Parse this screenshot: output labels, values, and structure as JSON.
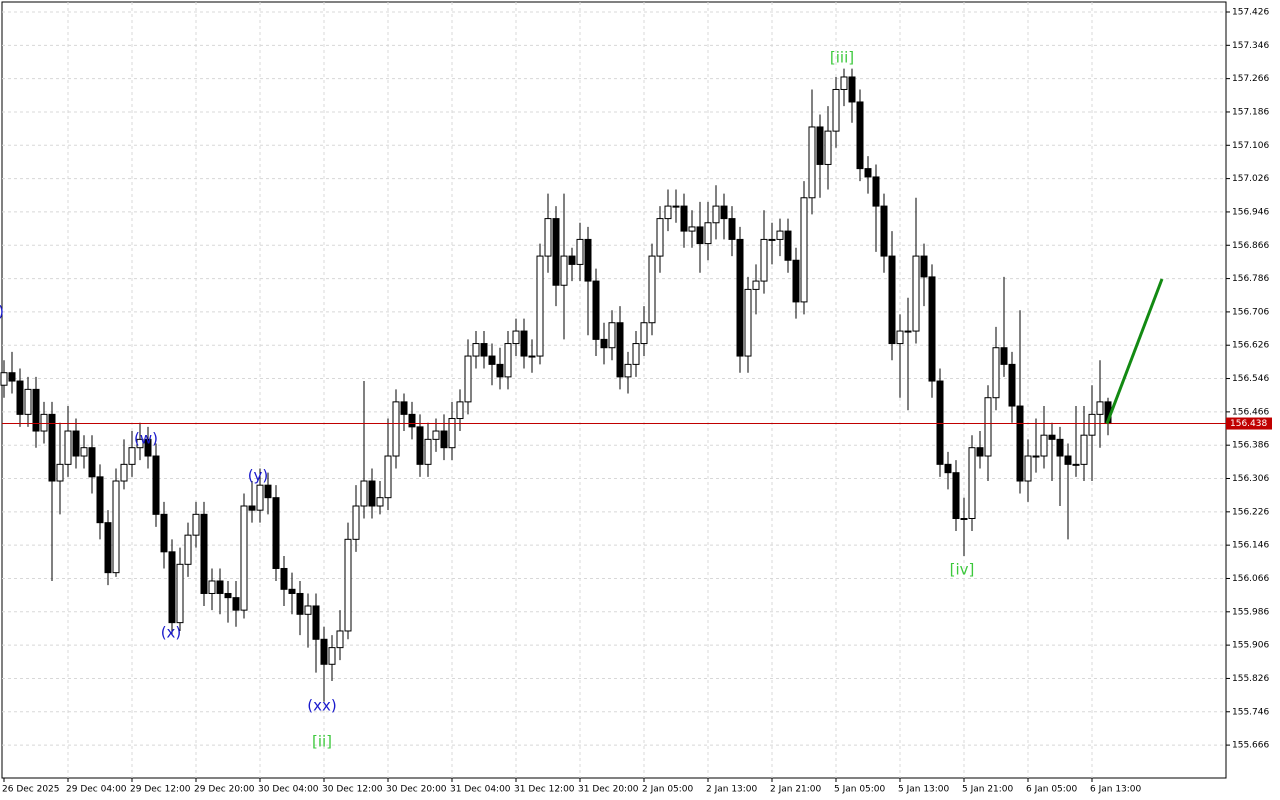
{
  "chart_data": {
    "type": "candlestick",
    "categories": [
      "26 Dec 2025",
      null,
      null,
      null,
      null,
      null,
      null,
      null,
      "29 Dec 04:00",
      null,
      null,
      null,
      null,
      null,
      null,
      null,
      "29 Dec 12:00",
      null,
      null,
      null,
      null,
      null,
      null,
      null,
      "29 Dec 20:00",
      null,
      null,
      null,
      null,
      null,
      null,
      null,
      "30 Dec 04:00",
      null,
      null,
      null,
      null,
      null,
      null,
      null,
      "30 Dec 12:00",
      null,
      null,
      null,
      null,
      null,
      null,
      null,
      "30 Dec 20:00",
      null,
      null,
      null,
      null,
      null,
      null,
      null,
      "31 Dec 04:00",
      null,
      null,
      null,
      null,
      null,
      null,
      null,
      "31 Dec 12:00",
      null,
      null,
      null,
      null,
      null,
      null,
      null,
      "31 Dec 20:00",
      null,
      null,
      null,
      null,
      null,
      null,
      null,
      "2 Jan 05:00",
      null,
      null,
      null,
      null,
      null,
      null,
      null,
      "2 Jan 13:00",
      null,
      null,
      null,
      null,
      null,
      null,
      null,
      "2 Jan 21:00",
      null,
      null,
      null,
      null,
      null,
      null,
      null,
      "5 Jan 05:00",
      null,
      null,
      null,
      null,
      null,
      null,
      null,
      "5 Jan 13:00",
      null,
      null,
      null,
      null,
      null,
      null,
      null,
      "5 Jan 21:00",
      null,
      null,
      null,
      null,
      null,
      null,
      null,
      "6 Jan 05:00",
      null,
      null,
      null,
      null,
      null,
      null,
      null,
      "6 Jan 13:00",
      null,
      null
    ],
    "open": [
      156.53,
      156.56,
      156.54,
      156.46,
      156.52,
      156.42,
      156.46,
      156.3,
      156.34,
      156.42,
      156.36,
      156.38,
      156.31,
      156.2,
      156.08,
      156.3,
      156.34,
      156.38,
      156.4,
      156.36,
      156.22,
      156.13,
      155.96,
      156.1,
      156.17,
      156.22,
      156.03,
      156.06,
      156.03,
      156.02,
      155.99,
      156.24,
      156.23,
      156.29,
      156.26,
      156.09,
      156.04,
      156.03,
      155.98,
      156.0,
      155.92,
      155.86,
      155.9,
      155.94,
      156.16,
      156.24,
      156.3,
      156.24,
      156.26,
      156.36,
      156.49,
      156.46,
      156.43,
      156.34,
      156.4,
      156.42,
      156.38,
      156.45,
      156.49,
      156.6,
      156.63,
      156.6,
      156.58,
      156.55,
      156.63,
      156.66,
      156.6,
      156.6,
      156.84,
      156.93,
      156.77,
      156.84,
      156.82,
      156.88,
      156.78,
      156.64,
      156.62,
      156.68,
      156.55,
      156.58,
      156.63,
      156.68,
      156.84,
      156.93,
      156.96,
      156.96,
      156.9,
      156.91,
      156.87,
      156.92,
      156.96,
      156.93,
      156.88,
      156.6,
      156.76,
      156.78,
      156.88,
      156.88,
      156.9,
      156.83,
      156.73,
      156.98,
      157.15,
      157.06,
      157.14,
      157.24,
      157.27,
      157.21,
      157.05,
      157.03,
      156.96,
      156.84,
      156.63,
      156.66,
      156.66,
      156.84,
      156.79,
      156.54,
      156.34,
      156.32,
      156.21,
      156.21,
      156.38,
      156.36,
      156.5,
      156.62,
      156.58,
      156.48,
      156.3,
      156.36,
      156.36,
      156.41,
      156.4,
      156.36,
      156.34,
      156.34,
      156.41,
      156.46,
      156.49
    ],
    "high": [
      156.59,
      156.61,
      156.57,
      156.55,
      156.55,
      156.49,
      156.49,
      156.44,
      156.48,
      156.45,
      156.41,
      156.41,
      156.34,
      156.23,
      156.33,
      156.4,
      156.42,
      156.44,
      156.43,
      156.39,
      156.25,
      156.16,
      156.14,
      156.2,
      156.25,
      156.25,
      156.09,
      156.09,
      156.06,
      156.06,
      156.27,
      156.3,
      156.33,
      156.32,
      156.29,
      156.12,
      156.08,
      156.06,
      156.03,
      156.03,
      155.95,
      155.93,
      155.99,
      156.2,
      156.29,
      156.54,
      156.33,
      156.3,
      156.45,
      156.52,
      156.51,
      156.49,
      156.46,
      156.44,
      156.45,
      156.46,
      156.49,
      156.52,
      156.64,
      156.66,
      156.66,
      156.63,
      156.62,
      156.66,
      156.69,
      156.69,
      156.64,
      156.87,
      156.99,
      156.96,
      156.99,
      156.86,
      156.92,
      156.91,
      156.81,
      156.68,
      156.71,
      156.72,
      156.61,
      156.66,
      156.72,
      156.87,
      156.96,
      157.0,
      157.0,
      156.99,
      156.95,
      156.97,
      156.97,
      157.01,
      156.99,
      156.96,
      156.91,
      156.79,
      156.82,
      156.95,
      156.92,
      156.93,
      156.93,
      156.86,
      157.02,
      157.24,
      157.18,
      157.2,
      157.27,
      157.29,
      157.29,
      157.24,
      157.08,
      157.06,
      156.99,
      156.9,
      156.7,
      156.74,
      156.98,
      156.87,
      156.82,
      156.57,
      156.37,
      156.35,
      156.26,
      156.41,
      156.42,
      156.53,
      156.67,
      156.79,
      156.61,
      156.71,
      156.4,
      156.45,
      156.48,
      156.44,
      156.43,
      156.39,
      156.48,
      156.48,
      156.53,
      156.59,
      156.5
    ],
    "low": [
      156.5,
      156.51,
      156.43,
      156.43,
      156.38,
      156.39,
      156.06,
      156.22,
      156.31,
      156.33,
      156.33,
      156.27,
      156.16,
      156.05,
      156.07,
      156.28,
      156.31,
      156.35,
      156.33,
      156.19,
      156.09,
      155.93,
      155.94,
      156.07,
      156.14,
      156.0,
      155.99,
      155.98,
      155.96,
      155.95,
      155.97,
      156.2,
      156.2,
      156.22,
      156.06,
      156.0,
      155.98,
      155.93,
      155.9,
      155.84,
      155.77,
      155.82,
      155.87,
      155.92,
      156.13,
      156.21,
      156.21,
      156.22,
      156.23,
      156.33,
      156.42,
      156.4,
      156.31,
      156.31,
      156.37,
      156.35,
      156.35,
      156.42,
      156.46,
      156.57,
      156.57,
      156.53,
      156.52,
      156.52,
      156.6,
      156.57,
      156.56,
      156.58,
      156.8,
      156.72,
      156.64,
      156.78,
      156.78,
      156.65,
      156.6,
      156.58,
      156.59,
      156.52,
      156.51,
      156.55,
      156.6,
      156.65,
      156.8,
      156.9,
      156.92,
      156.86,
      156.86,
      156.8,
      156.83,
      156.88,
      156.88,
      156.84,
      156.56,
      156.56,
      156.7,
      156.75,
      156.82,
      156.84,
      156.8,
      156.69,
      156.7,
      156.94,
      156.98,
      157.0,
      157.1,
      157.2,
      157.16,
      157.02,
      156.99,
      156.85,
      156.8,
      156.59,
      156.5,
      156.47,
      156.63,
      156.72,
      156.5,
      156.31,
      156.28,
      156.18,
      156.12,
      156.18,
      156.33,
      156.3,
      156.47,
      156.55,
      156.44,
      156.27,
      156.25,
      156.32,
      156.33,
      156.3,
      156.24,
      156.16,
      156.31,
      156.3,
      156.3,
      156.38,
      156.41
    ],
    "close": [
      156.56,
      156.54,
      156.46,
      156.52,
      156.42,
      156.46,
      156.3,
      156.34,
      156.42,
      156.36,
      156.38,
      156.31,
      156.2,
      156.08,
      156.3,
      156.34,
      156.38,
      156.4,
      156.36,
      156.22,
      156.13,
      155.96,
      156.1,
      156.17,
      156.22,
      156.03,
      156.06,
      156.03,
      156.02,
      155.99,
      156.24,
      156.23,
      156.29,
      156.26,
      156.09,
      156.04,
      156.03,
      155.98,
      156.0,
      155.92,
      155.86,
      155.9,
      155.94,
      156.16,
      156.24,
      156.3,
      156.24,
      156.26,
      156.36,
      156.49,
      156.46,
      156.43,
      156.34,
      156.4,
      156.42,
      156.38,
      156.45,
      156.49,
      156.6,
      156.63,
      156.6,
      156.58,
      156.55,
      156.63,
      156.66,
      156.6,
      156.6,
      156.84,
      156.93,
      156.77,
      156.84,
      156.82,
      156.88,
      156.78,
      156.64,
      156.62,
      156.68,
      156.55,
      156.58,
      156.63,
      156.68,
      156.84,
      156.93,
      156.96,
      156.96,
      156.9,
      156.91,
      156.87,
      156.92,
      156.96,
      156.93,
      156.88,
      156.6,
      156.76,
      156.78,
      156.88,
      156.88,
      156.9,
      156.83,
      156.73,
      156.98,
      157.15,
      157.06,
      157.14,
      157.24,
      157.27,
      157.21,
      157.05,
      157.03,
      156.96,
      156.84,
      156.63,
      156.66,
      156.66,
      156.84,
      156.79,
      156.54,
      156.34,
      156.32,
      156.21,
      156.21,
      156.38,
      156.36,
      156.5,
      156.62,
      156.58,
      156.48,
      156.3,
      156.36,
      156.36,
      156.41,
      156.4,
      156.36,
      156.34,
      156.34,
      156.41,
      156.46,
      156.49,
      156.438
    ],
    "ylim": [
      155.587,
      157.45
    ],
    "yticks": [
      157.426,
      157.346,
      157.266,
      157.186,
      157.106,
      157.026,
      156.946,
      156.866,
      156.786,
      156.706,
      156.626,
      156.546,
      156.466,
      156.386,
      156.306,
      156.226,
      156.146,
      156.066,
      155.986,
      155.906,
      155.826,
      155.746,
      155.666
    ],
    "grid": true,
    "up_color": "#ffffff",
    "down_color": "#000000",
    "last_price": 156.438,
    "last_price_color": "#c00000",
    "projection": {
      "color": "#138a13",
      "values": [
        156.438,
        156.785
      ]
    },
    "annotations": [
      {
        "text": ")",
        "color": "#1a1acc"
      },
      {
        "text": "(w)",
        "color": "#1a1acc"
      },
      {
        "text": "(x)",
        "color": "#1a1acc"
      },
      {
        "text": "(y)",
        "color": "#1a1acc"
      },
      {
        "text": "(xx)",
        "color": "#1a1acc"
      },
      {
        "text": "[ii]",
        "color": "#3cc83c"
      },
      {
        "text": "[iii]",
        "color": "#3cc83c"
      },
      {
        "text": "[iv]",
        "color": "#3cc83c"
      }
    ]
  }
}
